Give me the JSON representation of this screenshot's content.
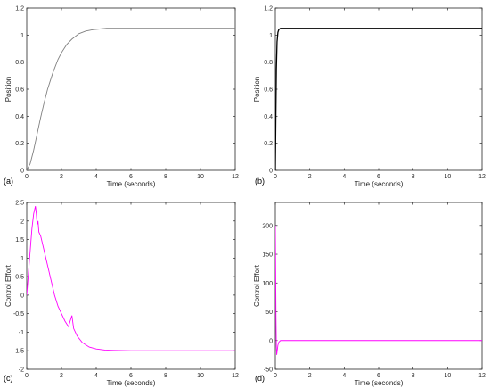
{
  "chart_data": [
    {
      "id": "a",
      "type": "line",
      "panel_label": "(a)",
      "xlabel": "Time (seconds)",
      "ylabel": "Position",
      "xlim": [
        0,
        12
      ],
      "ylim": [
        0,
        1.2
      ],
      "xticks": [
        0,
        2,
        4,
        6,
        8,
        10,
        12
      ],
      "yticks": [
        0,
        0.2,
        0.4,
        0.6,
        0.8,
        1,
        1.2
      ],
      "line_color": "#808080",
      "series": [
        {
          "x": [
            0,
            0.2,
            0.4,
            0.6,
            0.8,
            1.0,
            1.2,
            1.5,
            1.8,
            2.0,
            2.3,
            2.6,
            3.0,
            3.4,
            3.8,
            4.2,
            4.6,
            5.0,
            6.0,
            8.0,
            10.0,
            12.0
          ],
          "y": [
            0,
            0.05,
            0.15,
            0.27,
            0.39,
            0.5,
            0.6,
            0.72,
            0.82,
            0.87,
            0.93,
            0.97,
            1.01,
            1.03,
            1.04,
            1.045,
            1.05,
            1.05,
            1.05,
            1.05,
            1.05,
            1.05
          ]
        }
      ]
    },
    {
      "id": "b",
      "type": "line",
      "panel_label": "(b)",
      "xlabel": "Time (seconds)",
      "ylabel": "Position",
      "xlim": [
        0,
        12
      ],
      "ylim": [
        0,
        1.2
      ],
      "xticks": [
        0,
        2,
        4,
        6,
        8,
        10,
        12
      ],
      "yticks": [
        0,
        0.2,
        0.4,
        0.6,
        0.8,
        1,
        1.2
      ],
      "line_color": "#000000",
      "series": [
        {
          "x": [
            0,
            0.03,
            0.06,
            0.1,
            0.15,
            0.2,
            0.3,
            0.5,
            1.0,
            12.0
          ],
          "y": [
            0,
            0.4,
            0.75,
            0.95,
            1.02,
            1.04,
            1.05,
            1.05,
            1.05,
            1.05
          ]
        }
      ]
    },
    {
      "id": "c",
      "type": "line",
      "panel_label": "(c)",
      "xlabel": "Time (seconds)",
      "ylabel": "Control Effort",
      "xlim": [
        0,
        12
      ],
      "ylim": [
        -2,
        2.5
      ],
      "xticks": [
        0,
        2,
        4,
        6,
        8,
        10,
        12
      ],
      "yticks": [
        -2,
        -1.5,
        -1,
        -0.5,
        0,
        0.5,
        1,
        1.5,
        2,
        2.5
      ],
      "line_color": "#ff00ff",
      "series": [
        {
          "x": [
            0,
            0.1,
            0.2,
            0.3,
            0.4,
            0.5,
            0.55,
            0.6,
            0.65,
            0.7,
            0.8,
            1.0,
            1.2,
            1.4,
            1.6,
            1.8,
            2.0,
            2.2,
            2.4,
            2.6,
            2.7,
            2.9,
            3.2,
            3.6,
            4.0,
            4.5,
            5.0,
            6.0,
            8.0,
            10.0,
            12.0
          ],
          "y": [
            0,
            0.6,
            1.2,
            1.8,
            2.2,
            2.4,
            2.2,
            1.9,
            2.0,
            1.7,
            1.6,
            1.2,
            0.8,
            0.4,
            0.0,
            -0.3,
            -0.5,
            -0.7,
            -0.85,
            -0.55,
            -0.9,
            -1.1,
            -1.28,
            -1.4,
            -1.45,
            -1.48,
            -1.49,
            -1.5,
            -1.5,
            -1.5,
            -1.5
          ]
        }
      ]
    },
    {
      "id": "d",
      "type": "line",
      "panel_label": "(d)",
      "xlabel": "Time (seconds)",
      "ylabel": "Control Effort",
      "xlim": [
        0,
        12
      ],
      "ylim": [
        -50,
        240
      ],
      "xticks": [
        0,
        2,
        4,
        6,
        8,
        10,
        12
      ],
      "yticks": [
        -50,
        0,
        50,
        100,
        150,
        200
      ],
      "line_color": "#ff00ff",
      "series": [
        {
          "x": [
            0,
            0.02,
            0.04,
            0.06,
            0.08,
            0.1,
            0.15,
            0.2,
            0.3,
            0.5,
            1.0,
            12.0
          ],
          "y": [
            200,
            120,
            40,
            -10,
            -25,
            -20,
            -8,
            -3,
            0,
            0,
            0,
            0
          ]
        }
      ]
    }
  ]
}
